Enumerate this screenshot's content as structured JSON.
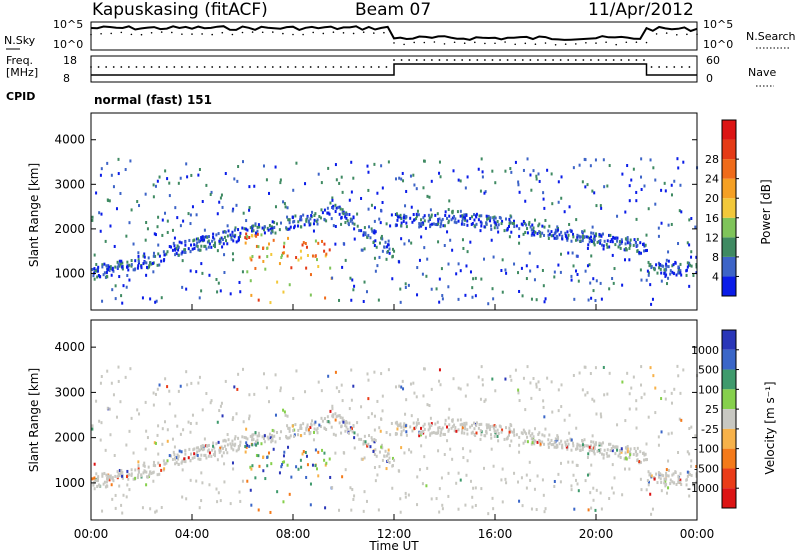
{
  "header": {
    "station": "Kapuskasing (fitACF)",
    "beam": "Beam 07",
    "date": "11/Apr/2012"
  },
  "top_panel": {
    "left_label": "N.Sky",
    "right_label": "N.Search",
    "y_tick_high": "10^5",
    "y_tick_low": "10^0"
  },
  "freq_panel": {
    "label_line1": "Freq.",
    "label_line2": "[MHz]",
    "left_ticks": [
      "18",
      "8"
    ],
    "right_ticks": [
      "60",
      "0"
    ],
    "right_label": "Nave",
    "cpid_label": "CPID",
    "mode_text": "normal (fast) 151"
  },
  "chart_data": [
    {
      "type": "heatmap",
      "name": "power",
      "ylabel": "Slant Range [km]",
      "xlabel": "",
      "y_ticks": [
        "1000",
        "2000",
        "3000",
        "4000"
      ],
      "ylim": [
        180,
        4600
      ],
      "colorbar_label": "Power [dB]",
      "colorbar_ticks": [
        "4",
        "8",
        "12",
        "16",
        "20",
        "24",
        "28"
      ],
      "colorbar_colors": [
        "#0a1ce8",
        "#3d64c7",
        "#3f8a62",
        "#7fc45a",
        "#f2c83a",
        "#f5a024",
        "#ef6b1a",
        "#e53b17",
        "#dc1414"
      ]
    },
    {
      "type": "heatmap",
      "name": "velocity",
      "ylabel": "Slant Range [km]",
      "xlabel": "Time UT",
      "x_ticks": [
        "00:00",
        "04:00",
        "08:00",
        "12:00",
        "16:00",
        "20:00",
        "00:00"
      ],
      "xlim_hours": [
        0,
        24
      ],
      "y_ticks": [
        "1000",
        "2000",
        "3000",
        "4000"
      ],
      "ylim": [
        180,
        4600
      ],
      "colorbar_label": "Velocity [m s⁻¹]",
      "colorbar_ticks": [
        "1000",
        "500",
        "100",
        "25",
        "-25",
        "-100",
        "-500",
        "-1000"
      ],
      "colorbar_colors": [
        "#2a36b8",
        "#3a66c8",
        "#3f9a6c",
        "#86d04c",
        "#c8c8c2",
        "#f7b24a",
        "#f47a1a",
        "#ea3c18",
        "#dc1414"
      ]
    }
  ]
}
